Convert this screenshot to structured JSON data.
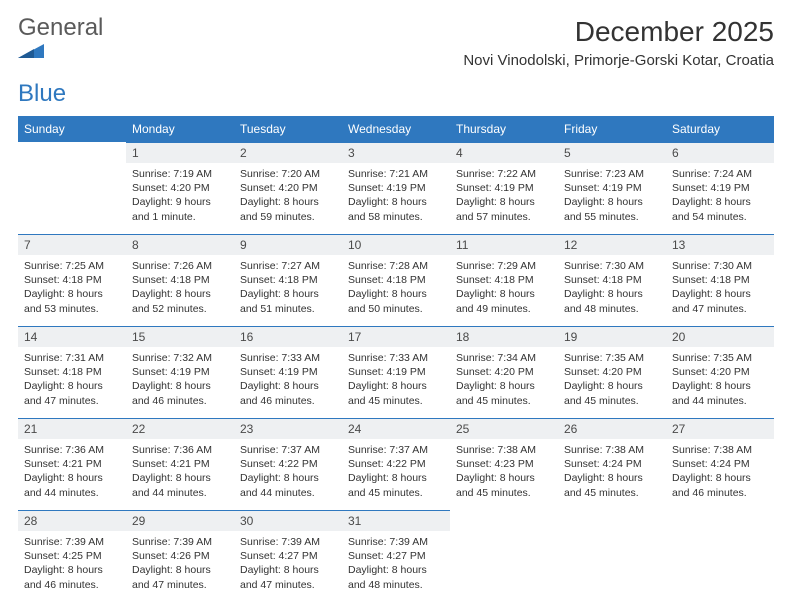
{
  "brand": {
    "word1": "General",
    "word2": "Blue"
  },
  "title": "December 2025",
  "location": "Novi Vinodolski, Primorje-Gorski Kotar, Croatia",
  "colors": {
    "header_bg": "#2f78bf",
    "header_text": "#ffffff",
    "daynum_bg": "#eef0f2",
    "cell_border": "#2f78bf",
    "page_bg": "#ffffff",
    "text": "#333333",
    "logo_gray": "#5a5a5a",
    "logo_blue": "#2f78bf"
  },
  "typography": {
    "title_fontsize": 28,
    "location_fontsize": 15,
    "dayheader_fontsize": 12,
    "daynum_fontsize": 12,
    "info_fontsize": 10.5
  },
  "calendar": {
    "type": "table",
    "columns": [
      "Sunday",
      "Monday",
      "Tuesday",
      "Wednesday",
      "Thursday",
      "Friday",
      "Saturday"
    ],
    "weeks": [
      [
        null,
        {
          "n": 1,
          "sr": "7:19 AM",
          "ss": "4:20 PM",
          "dl": "9 hours and 1 minute."
        },
        {
          "n": 2,
          "sr": "7:20 AM",
          "ss": "4:20 PM",
          "dl": "8 hours and 59 minutes."
        },
        {
          "n": 3,
          "sr": "7:21 AM",
          "ss": "4:19 PM",
          "dl": "8 hours and 58 minutes."
        },
        {
          "n": 4,
          "sr": "7:22 AM",
          "ss": "4:19 PM",
          "dl": "8 hours and 57 minutes."
        },
        {
          "n": 5,
          "sr": "7:23 AM",
          "ss": "4:19 PM",
          "dl": "8 hours and 55 minutes."
        },
        {
          "n": 6,
          "sr": "7:24 AM",
          "ss": "4:19 PM",
          "dl": "8 hours and 54 minutes."
        }
      ],
      [
        {
          "n": 7,
          "sr": "7:25 AM",
          "ss": "4:18 PM",
          "dl": "8 hours and 53 minutes."
        },
        {
          "n": 8,
          "sr": "7:26 AM",
          "ss": "4:18 PM",
          "dl": "8 hours and 52 minutes."
        },
        {
          "n": 9,
          "sr": "7:27 AM",
          "ss": "4:18 PM",
          "dl": "8 hours and 51 minutes."
        },
        {
          "n": 10,
          "sr": "7:28 AM",
          "ss": "4:18 PM",
          "dl": "8 hours and 50 minutes."
        },
        {
          "n": 11,
          "sr": "7:29 AM",
          "ss": "4:18 PM",
          "dl": "8 hours and 49 minutes."
        },
        {
          "n": 12,
          "sr": "7:30 AM",
          "ss": "4:18 PM",
          "dl": "8 hours and 48 minutes."
        },
        {
          "n": 13,
          "sr": "7:30 AM",
          "ss": "4:18 PM",
          "dl": "8 hours and 47 minutes."
        }
      ],
      [
        {
          "n": 14,
          "sr": "7:31 AM",
          "ss": "4:18 PM",
          "dl": "8 hours and 47 minutes."
        },
        {
          "n": 15,
          "sr": "7:32 AM",
          "ss": "4:19 PM",
          "dl": "8 hours and 46 minutes."
        },
        {
          "n": 16,
          "sr": "7:33 AM",
          "ss": "4:19 PM",
          "dl": "8 hours and 46 minutes."
        },
        {
          "n": 17,
          "sr": "7:33 AM",
          "ss": "4:19 PM",
          "dl": "8 hours and 45 minutes."
        },
        {
          "n": 18,
          "sr": "7:34 AM",
          "ss": "4:20 PM",
          "dl": "8 hours and 45 minutes."
        },
        {
          "n": 19,
          "sr": "7:35 AM",
          "ss": "4:20 PM",
          "dl": "8 hours and 45 minutes."
        },
        {
          "n": 20,
          "sr": "7:35 AM",
          "ss": "4:20 PM",
          "dl": "8 hours and 44 minutes."
        }
      ],
      [
        {
          "n": 21,
          "sr": "7:36 AM",
          "ss": "4:21 PM",
          "dl": "8 hours and 44 minutes."
        },
        {
          "n": 22,
          "sr": "7:36 AM",
          "ss": "4:21 PM",
          "dl": "8 hours and 44 minutes."
        },
        {
          "n": 23,
          "sr": "7:37 AM",
          "ss": "4:22 PM",
          "dl": "8 hours and 44 minutes."
        },
        {
          "n": 24,
          "sr": "7:37 AM",
          "ss": "4:22 PM",
          "dl": "8 hours and 45 minutes."
        },
        {
          "n": 25,
          "sr": "7:38 AM",
          "ss": "4:23 PM",
          "dl": "8 hours and 45 minutes."
        },
        {
          "n": 26,
          "sr": "7:38 AM",
          "ss": "4:24 PM",
          "dl": "8 hours and 45 minutes."
        },
        {
          "n": 27,
          "sr": "7:38 AM",
          "ss": "4:24 PM",
          "dl": "8 hours and 46 minutes."
        }
      ],
      [
        {
          "n": 28,
          "sr": "7:39 AM",
          "ss": "4:25 PM",
          "dl": "8 hours and 46 minutes."
        },
        {
          "n": 29,
          "sr": "7:39 AM",
          "ss": "4:26 PM",
          "dl": "8 hours and 47 minutes."
        },
        {
          "n": 30,
          "sr": "7:39 AM",
          "ss": "4:27 PM",
          "dl": "8 hours and 47 minutes."
        },
        {
          "n": 31,
          "sr": "7:39 AM",
          "ss": "4:27 PM",
          "dl": "8 hours and 48 minutes."
        },
        null,
        null,
        null
      ]
    ],
    "labels": {
      "sunrise": "Sunrise:",
      "sunset": "Sunset:",
      "daylight": "Daylight:"
    }
  }
}
